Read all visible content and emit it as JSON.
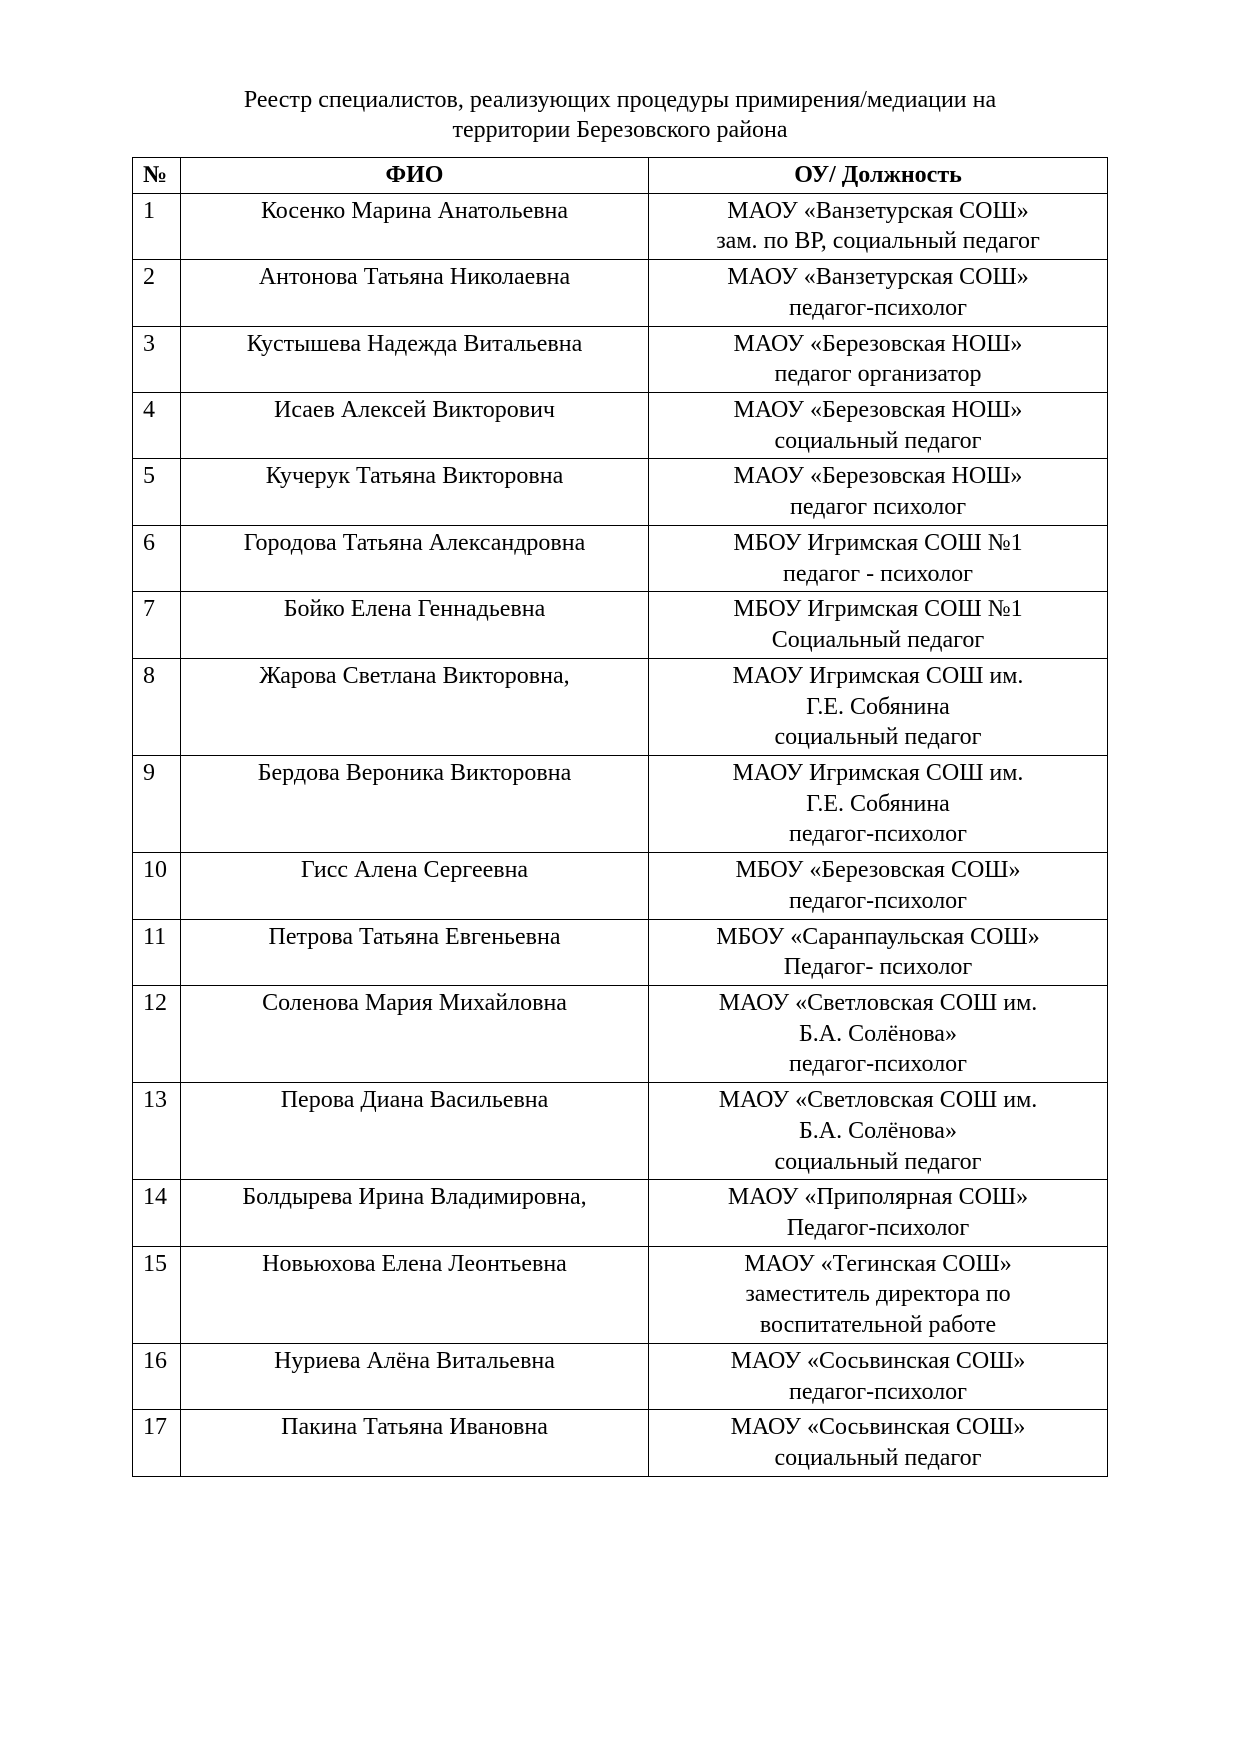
{
  "title_line1": "Реестр специалистов, реализующих процедуры примирения/медиации на",
  "title_line2": "территории Березовского района",
  "columns": {
    "num": "№",
    "name": "ФИО",
    "org": "ОУ/ Должность"
  },
  "rows": [
    {
      "n": "1",
      "name": "Косенко Марина Анатольевна",
      "org": "МАОУ «Ванзетурская СОШ»\nзам. по ВР, социальный педагог"
    },
    {
      "n": "2",
      "name": "Антонова Татьяна Николаевна",
      "org": "МАОУ «Ванзетурская СОШ»\nпедагог-психолог"
    },
    {
      "n": "3",
      "name": "Кустышева Надежда Витальевна",
      "org": "МАОУ «Березовская НОШ»\nпедагог организатор"
    },
    {
      "n": "4",
      "name": "Исаев Алексей Викторович",
      "org": "МАОУ «Березовская НОШ»\nсоциальный педагог"
    },
    {
      "n": "5",
      "name": "Кучерук Татьяна Викторовна",
      "org": "МАОУ «Березовская НОШ»\nпедагог психолог"
    },
    {
      "n": "6",
      "name": "Городова Татьяна Александровна",
      "org": "МБОУ Игримская СОШ №1\nпедагог - психолог"
    },
    {
      "n": "7",
      "name": "Бойко Елена Геннадьевна",
      "org": "МБОУ Игримская СОШ №1\nСоциальный педагог"
    },
    {
      "n": "8",
      "name": "Жарова Светлана Викторовна,",
      "org": "МАОУ Игримская СОШ им.\nГ.Е. Собянина\nсоциальный педагог"
    },
    {
      "n": "9",
      "name": "Бердова Вероника Викторовна",
      "org": "МАОУ Игримская СОШ им.\nГ.Е. Собянина\nпедагог-психолог"
    },
    {
      "n": "10",
      "name": "Гисс Алена Сергеевна",
      "org": "МБОУ «Березовская СОШ»\nпедагог-психолог"
    },
    {
      "n": "11",
      "name": "Петрова Татьяна Евгеньевна",
      "org": "МБОУ «Саранпаульская СОШ»\nПедагог- психолог"
    },
    {
      "n": "12",
      "name": "Соленова Мария Михайловна",
      "org": "МАОУ «Светловская СОШ им.\nБ.А. Солёнова»\nпедагог-психолог"
    },
    {
      "n": "13",
      "name": "Перова Диана Васильевна",
      "org": "МАОУ «Светловская СОШ им.\nБ.А. Солёнова»\nсоциальный педагог"
    },
    {
      "n": "14",
      "name": "Болдырева Ирина Владимировна,",
      "org": "МАОУ «Приполярная СОШ»\nПедагог-психолог"
    },
    {
      "n": "15",
      "name": "Новьюхова Елена Леонтьевна",
      "org": "МАОУ «Тегинская СОШ»\nзаместитель директора по\nвоспитательной работе"
    },
    {
      "n": "16",
      "name": "Нуриева Алёна Витальевна",
      "org": "МАОУ «Сосьвинская СОШ»\nпедагог-психолог"
    },
    {
      "n": "17",
      "name": "Пакина Татьяна Ивановна",
      "org": "МАОУ «Сосьвинская СОШ»\nсоциальный педагог"
    }
  ]
}
